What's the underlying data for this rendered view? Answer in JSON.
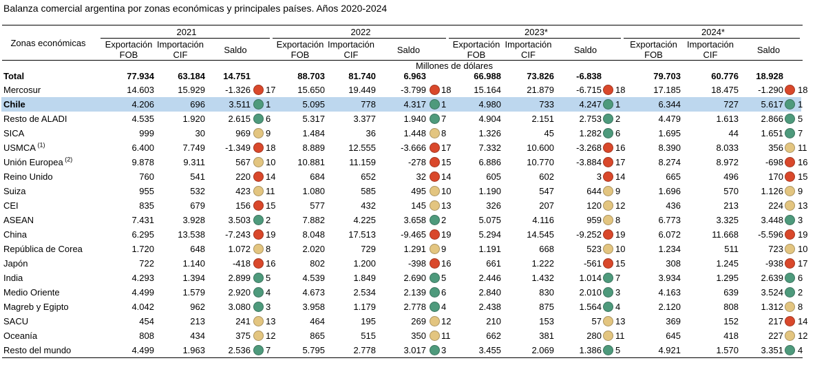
{
  "title": "Balanza comercial argentina por zonas económicas y principales países. Años 2020-2024",
  "header": {
    "zone_col": "Zonas económicas",
    "unit": "Millones de dólares",
    "years": [
      "2021",
      "2022",
      "2023*",
      "2024*"
    ],
    "col_export": [
      "Exportación",
      "FOB"
    ],
    "col_import": [
      "Importación",
      "CIF"
    ],
    "col_saldo": "Saldo"
  },
  "colors": {
    "red": "#d9482b",
    "green": "#4e9a7c",
    "yellow": "#e3c580",
    "highlight": "#bdd7ee"
  },
  "total": {
    "name": "Total",
    "values": [
      [
        "77.934",
        "63.184",
        "14.751"
      ],
      [
        "88.703",
        "81.740",
        "6.963"
      ],
      [
        "66.988",
        "73.826",
        "-6.838"
      ],
      [
        "79.703",
        "60.776",
        "18.928"
      ]
    ]
  },
  "rows": [
    {
      "name": "Mercosur",
      "sup": "",
      "values": [
        [
          "14.603",
          "15.929",
          "-1.326",
          17
        ],
        [
          "15.650",
          "19.449",
          "-3.799",
          18
        ],
        [
          "15.164",
          "21.879",
          "-6.715",
          18
        ],
        [
          "17.185",
          "18.475",
          "-1.290",
          18
        ]
      ]
    },
    {
      "name": "Chile",
      "sup": "",
      "highlight": true,
      "values": [
        [
          "4.206",
          "696",
          "3.511",
          1
        ],
        [
          "5.095",
          "778",
          "4.317",
          1
        ],
        [
          "4.980",
          "733",
          "4.247",
          1
        ],
        [
          "6.344",
          "727",
          "5.617",
          1
        ]
      ]
    },
    {
      "name": "Resto de ALADI",
      "sup": "",
      "values": [
        [
          "4.535",
          "1.920",
          "2.615",
          6
        ],
        [
          "5.317",
          "3.377",
          "1.940",
          7
        ],
        [
          "4.904",
          "2.151",
          "2.753",
          2
        ],
        [
          "4.479",
          "1.613",
          "2.866",
          5
        ]
      ]
    },
    {
      "name": "SICA",
      "sup": "",
      "values": [
        [
          "999",
          "30",
          "969",
          9
        ],
        [
          "1.484",
          "36",
          "1.448",
          8
        ],
        [
          "1.326",
          "45",
          "1.282",
          6
        ],
        [
          "1.695",
          "44",
          "1.651",
          7
        ]
      ]
    },
    {
      "name": "USMCA",
      "sup": "(1)",
      "values": [
        [
          "6.400",
          "7.749",
          "-1.349",
          18
        ],
        [
          "8.889",
          "12.555",
          "-3.666",
          17
        ],
        [
          "7.332",
          "10.600",
          "-3.268",
          16
        ],
        [
          "8.390",
          "8.033",
          "356",
          11
        ]
      ]
    },
    {
      "name": "Unión Europea",
      "sup": "(2)",
      "values": [
        [
          "9.878",
          "9.311",
          "567",
          10
        ],
        [
          "10.881",
          "11.159",
          "-278",
          15
        ],
        [
          "6.886",
          "10.770",
          "-3.884",
          17
        ],
        [
          "8.274",
          "8.972",
          "-698",
          16
        ]
      ]
    },
    {
      "name": "Reino Unido",
      "sup": "",
      "values": [
        [
          "760",
          "541",
          "220",
          14
        ],
        [
          "684",
          "652",
          "32",
          14
        ],
        [
          "605",
          "602",
          "3",
          14
        ],
        [
          "665",
          "496",
          "170",
          15
        ]
      ]
    },
    {
      "name": "Suiza",
      "sup": "",
      "values": [
        [
          "955",
          "532",
          "423",
          11
        ],
        [
          "1.080",
          "585",
          "495",
          10
        ],
        [
          "1.190",
          "547",
          "644",
          9
        ],
        [
          "1.696",
          "570",
          "1.126",
          9
        ]
      ]
    },
    {
      "name": "CEI",
      "sup": "",
      "values": [
        [
          "835",
          "679",
          "156",
          15
        ],
        [
          "577",
          "432",
          "145",
          13
        ],
        [
          "326",
          "207",
          "120",
          12
        ],
        [
          "436",
          "213",
          "224",
          13
        ]
      ]
    },
    {
      "name": "ASEAN",
      "sup": "",
      "values": [
        [
          "7.431",
          "3.928",
          "3.503",
          2
        ],
        [
          "7.882",
          "4.225",
          "3.658",
          2
        ],
        [
          "5.075",
          "4.116",
          "959",
          8
        ],
        [
          "6.773",
          "3.325",
          "3.448",
          3
        ]
      ]
    },
    {
      "name": "China",
      "sup": "",
      "values": [
        [
          "6.295",
          "13.538",
          "-7.243",
          19
        ],
        [
          "8.048",
          "17.513",
          "-9.465",
          19
        ],
        [
          "5.294",
          "14.545",
          "-9.252",
          19
        ],
        [
          "6.072",
          "11.668",
          "-5.596",
          19
        ]
      ]
    },
    {
      "name": "República de Corea",
      "sup": "",
      "values": [
        [
          "1.720",
          "648",
          "1.072",
          8
        ],
        [
          "2.020",
          "729",
          "1.291",
          9
        ],
        [
          "1.191",
          "668",
          "523",
          10
        ],
        [
          "1.234",
          "511",
          "723",
          10
        ]
      ]
    },
    {
      "name": "Japón",
      "sup": "",
      "values": [
        [
          "722",
          "1.140",
          "-418",
          16
        ],
        [
          "802",
          "1.200",
          "-398",
          16
        ],
        [
          "661",
          "1.222",
          "-561",
          15
        ],
        [
          "308",
          "1.245",
          "-938",
          17
        ]
      ]
    },
    {
      "name": "India",
      "sup": "",
      "values": [
        [
          "4.293",
          "1.394",
          "2.899",
          5
        ],
        [
          "4.539",
          "1.849",
          "2.690",
          5
        ],
        [
          "2.446",
          "1.432",
          "1.014",
          7
        ],
        [
          "3.934",
          "1.295",
          "2.639",
          6
        ]
      ]
    },
    {
      "name": "Medio Oriente",
      "sup": "",
      "values": [
        [
          "4.499",
          "1.579",
          "2.920",
          4
        ],
        [
          "4.673",
          "2.534",
          "2.139",
          6
        ],
        [
          "2.840",
          "830",
          "2.010",
          3
        ],
        [
          "4.163",
          "639",
          "3.524",
          2
        ]
      ]
    },
    {
      "name": "Magreb y Egipto",
      "sup": "",
      "values": [
        [
          "4.042",
          "962",
          "3.080",
          3
        ],
        [
          "3.958",
          "1.179",
          "2.778",
          4
        ],
        [
          "2.438",
          "875",
          "1.564",
          4
        ],
        [
          "2.120",
          "808",
          "1.312",
          8
        ]
      ]
    },
    {
      "name": "SACU",
      "sup": "",
      "values": [
        [
          "454",
          "213",
          "241",
          13
        ],
        [
          "464",
          "195",
          "269",
          12
        ],
        [
          "210",
          "153",
          "57",
          13
        ],
        [
          "369",
          "152",
          "217",
          14
        ]
      ]
    },
    {
      "name": "Oceanía",
      "sup": "",
      "values": [
        [
          "808",
          "434",
          "375",
          12
        ],
        [
          "865",
          "515",
          "350",
          11
        ],
        [
          "662",
          "381",
          "280",
          11
        ],
        [
          "645",
          "418",
          "227",
          12
        ]
      ]
    },
    {
      "name": "Resto del mundo",
      "sup": "",
      "values": [
        [
          "4.499",
          "1.963",
          "2.536",
          7
        ],
        [
          "5.795",
          "2.778",
          "3.017",
          3
        ],
        [
          "3.455",
          "2.069",
          "1.386",
          5
        ],
        [
          "4.921",
          "1.570",
          "3.351",
          4
        ]
      ]
    }
  ]
}
